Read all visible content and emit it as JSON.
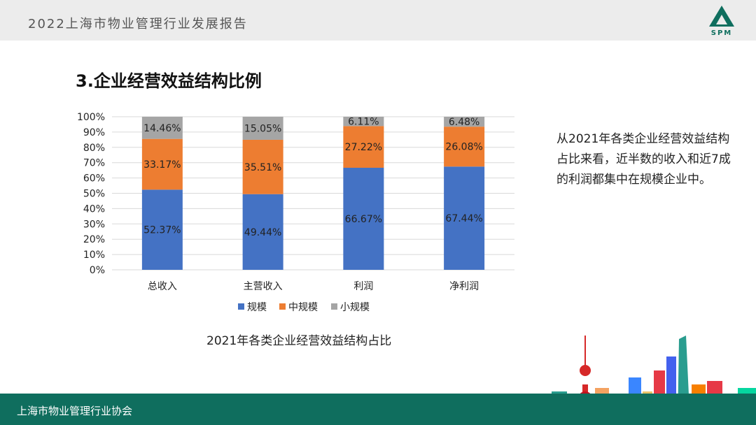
{
  "header": {
    "title": "2022上海市物业管理行业发展报告",
    "logo_text": "SPM",
    "logo_icon": "triangle-logo-icon"
  },
  "section": {
    "title": "3.企业经营效益结构比例"
  },
  "side_text": "从2021年各类企业经营效益结构占比来看，近半数的收入和近7成的利润都集中在规模企业中。",
  "footer": {
    "org": "上海市物业管理行业协会"
  },
  "colors": {
    "header_bg": "#ececec",
    "footer_bg": "#0f6e5e",
    "series": [
      "#4472c4",
      "#ed7d31",
      "#a5a5a5"
    ]
  },
  "chart_data": {
    "type": "bar",
    "stacked": true,
    "title": "2021年各类企业经营效益结构占比",
    "categories": [
      "总收入",
      "主营收入",
      "利润",
      "净利润"
    ],
    "series": [
      {
        "name": "规模",
        "values": [
          52.37,
          49.44,
          66.67,
          67.44
        ],
        "labels": [
          "52.37%",
          "49.44%",
          "66.67%",
          "67.44%"
        ]
      },
      {
        "name": "中规模",
        "values": [
          33.17,
          35.51,
          27.22,
          26.08
        ],
        "labels": [
          "33.17%",
          "35.51%",
          "27.22%",
          "26.08%"
        ]
      },
      {
        "name": "小规模",
        "values": [
          14.46,
          15.05,
          6.11,
          6.48
        ],
        "labels": [
          "14.46%",
          "15.05%",
          "6.11%",
          "6.48%"
        ]
      }
    ],
    "ylim": [
      0,
      100
    ],
    "yticks": [
      "0%",
      "10%",
      "20%",
      "30%",
      "40%",
      "50%",
      "60%",
      "70%",
      "80%",
      "90%",
      "100%"
    ],
    "grid": true,
    "legend": "bottom"
  }
}
